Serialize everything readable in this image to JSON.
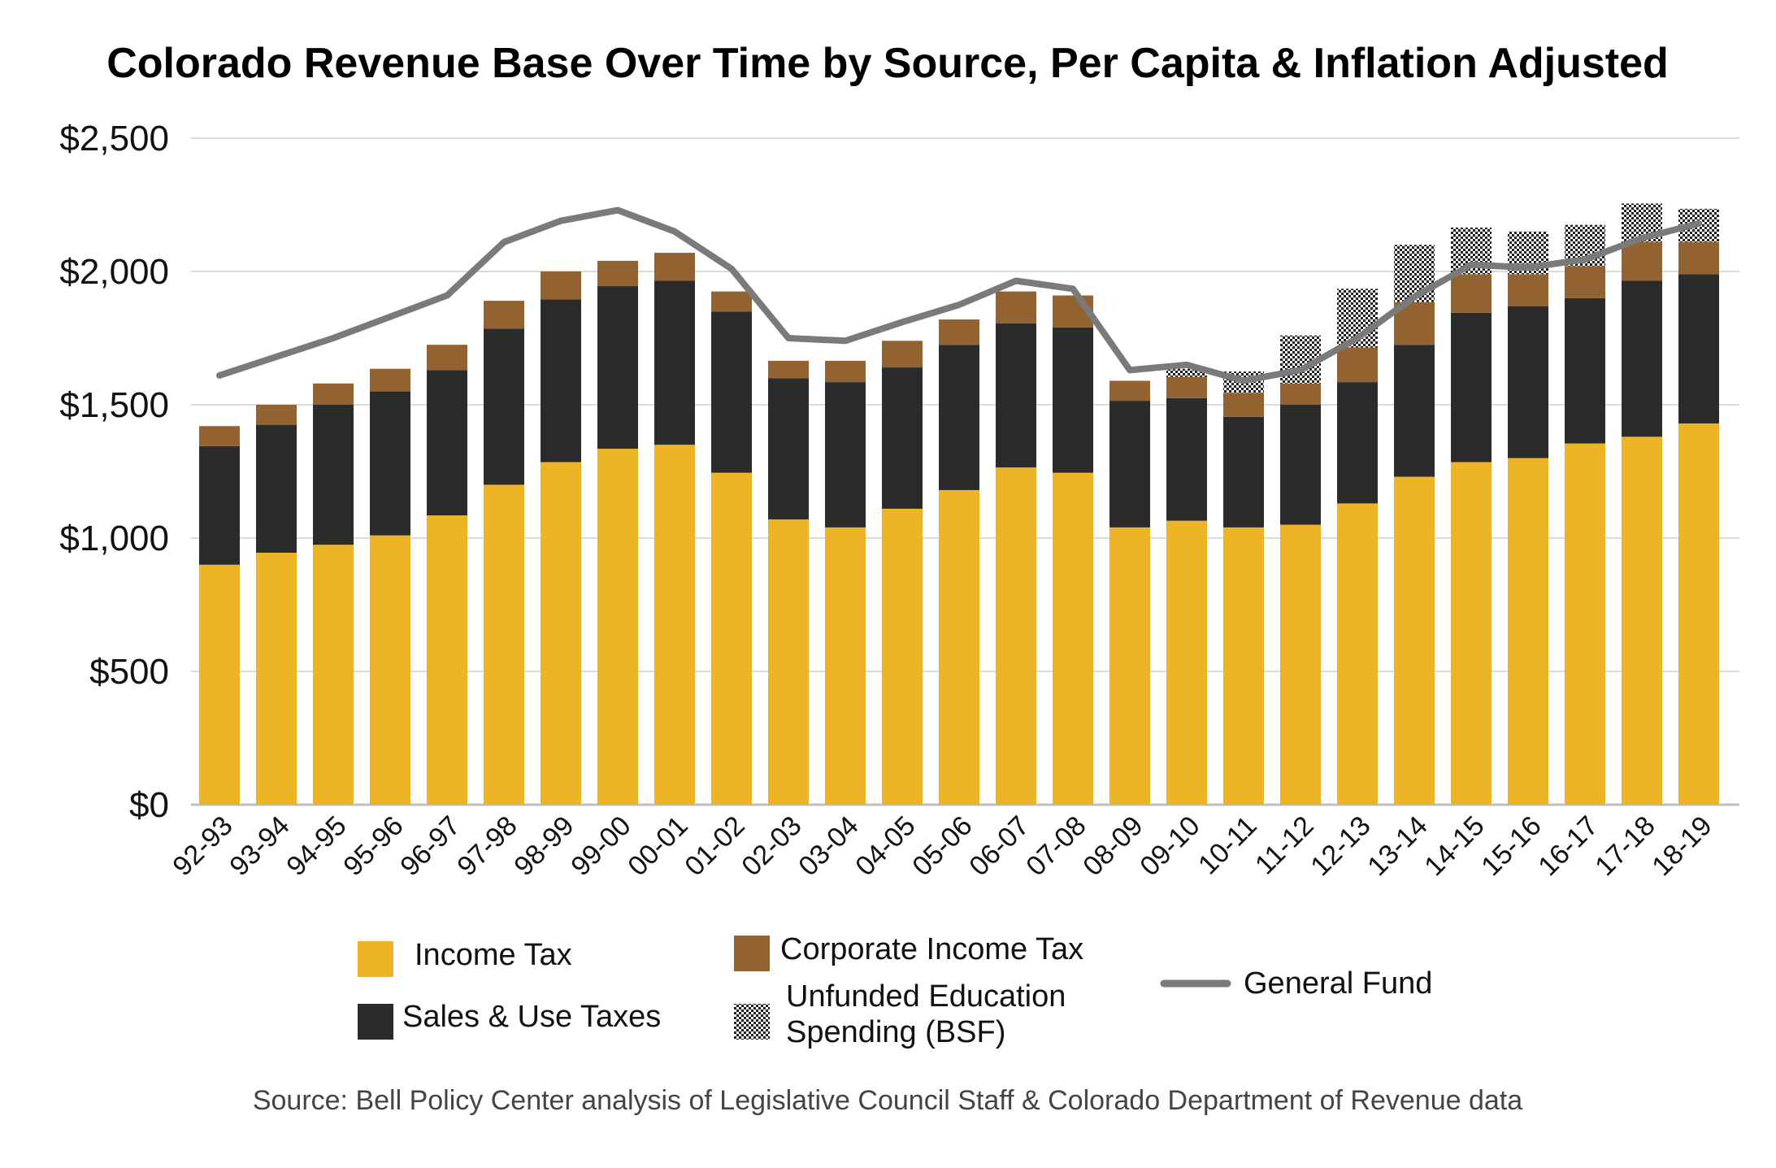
{
  "chart_data": {
    "type": "bar",
    "stacked": true,
    "title": "Colorado Revenue Base Over Time by Source, Per Capita & Inflation Adjusted",
    "source": "Source: Bell Policy Center analysis of Legislative Council Staff & Colorado Department of Revenue data",
    "categories": [
      "92-93",
      "93-94",
      "94-95",
      "95-96",
      "96-97",
      "97-98",
      "98-99",
      "99-00",
      "00-01",
      "01-02",
      "02-03",
      "03-04",
      "04-05",
      "05-06",
      "06-07",
      "07-08",
      "08-09",
      "09-10",
      "10-11",
      "11-12",
      "12-13",
      "13-14",
      "14-15",
      "15-16",
      "16-17",
      "17-18",
      "18-19"
    ],
    "yticks": [
      "$0",
      "$500",
      "$1,000",
      "$1,500",
      "$2,000",
      "$2,500"
    ],
    "ylim": [
      0,
      2500
    ],
    "grid": true,
    "series": [
      {
        "name": "Income Tax",
        "kind": "bar",
        "color": "#EDB526",
        "values": [
          900,
          945,
          975,
          1010,
          1085,
          1200,
          1285,
          1335,
          1350,
          1245,
          1070,
          1040,
          1110,
          1180,
          1265,
          1245,
          1040,
          1065,
          1040,
          1050,
          1130,
          1230,
          1285,
          1300,
          1355,
          1380,
          1430
        ]
      },
      {
        "name": "Sales & Use Taxes",
        "kind": "bar",
        "color": "#2B2B2B",
        "values": [
          445,
          480,
          525,
          540,
          545,
          585,
          610,
          610,
          615,
          605,
          530,
          545,
          530,
          545,
          540,
          545,
          475,
          460,
          415,
          450,
          455,
          495,
          560,
          570,
          545,
          585,
          560
        ]
      },
      {
        "name": "Corporate Income Tax",
        "kind": "bar",
        "color": "#926331",
        "values": [
          75,
          75,
          80,
          85,
          95,
          105,
          105,
          95,
          105,
          75,
          65,
          80,
          100,
          95,
          120,
          120,
          75,
          80,
          90,
          80,
          130,
          160,
          145,
          120,
          120,
          145,
          120
        ]
      },
      {
        "name": "Unfunded Education Spending (BSF)",
        "kind": "bar",
        "pattern": "dotted",
        "values": [
          0,
          0,
          0,
          0,
          0,
          0,
          0,
          0,
          0,
          0,
          0,
          0,
          0,
          0,
          0,
          0,
          0,
          30,
          80,
          180,
          220,
          215,
          175,
          160,
          155,
          145,
          125
        ]
      },
      {
        "name": "General Fund",
        "kind": "line",
        "color": "#7A7A7A",
        "values": [
          1610,
          1680,
          1750,
          1830,
          1910,
          2110,
          2190,
          2230,
          2150,
          2010,
          1750,
          1740,
          1810,
          1875,
          1965,
          1935,
          1630,
          1650,
          1590,
          1630,
          1750,
          1905,
          2025,
          2015,
          2045,
          2125,
          2180
        ]
      }
    ],
    "legend": {
      "placement": "bottom"
    }
  }
}
